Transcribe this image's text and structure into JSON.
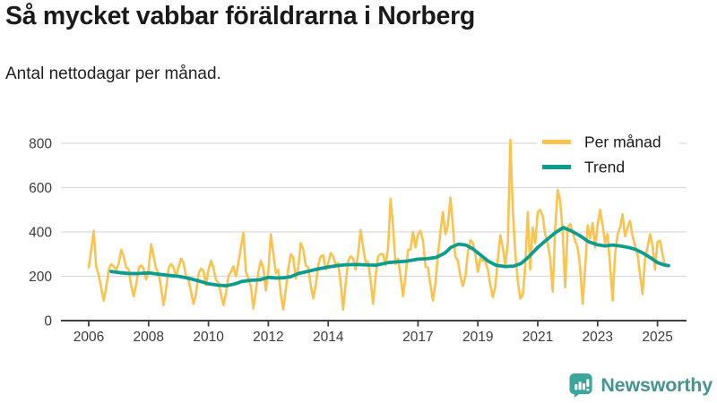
{
  "header": {
    "title": "Så mycket vabbar föräldrarna i Norberg",
    "subtitle": "Antal nettodagar per månad."
  },
  "legend": {
    "per_month_label": "Per månad",
    "trend_label": "Trend"
  },
  "footer": {
    "brand": "Newsworthy",
    "brand_color": "#44958f",
    "logo_color": "#3ba69b"
  },
  "chart_data": {
    "type": "line",
    "title": "Så mycket vabbar föräldrarna i Norberg",
    "xlabel": "",
    "ylabel": "",
    "grid": true,
    "legend_position": "top-right",
    "x_tick_years": [
      2006,
      2008,
      2010,
      2012,
      2014,
      2017,
      2019,
      2021,
      2023,
      2025
    ],
    "y_ticks": [
      0,
      200,
      400,
      600,
      800
    ],
    "ylim": [
      0,
      860
    ],
    "xlim_years": [
      2005.1,
      2026.0
    ],
    "colors": {
      "per_month": "#FBC34D",
      "trend": "#0C9D8F",
      "grid": "#d9d9d9",
      "axis": "#404040"
    },
    "series": [
      {
        "name": "Per månad",
        "start": "2006-01",
        "frequency": "monthly",
        "values": [
          240,
          320,
          405,
          245,
          205,
          150,
          90,
          150,
          230,
          255,
          245,
          230,
          255,
          320,
          290,
          240,
          230,
          160,
          110,
          160,
          235,
          250,
          235,
          185,
          230,
          345,
          290,
          235,
          215,
          150,
          70,
          140,
          235,
          255,
          240,
          200,
          240,
          280,
          260,
          200,
          185,
          130,
          75,
          120,
          210,
          235,
          225,
          160,
          230,
          270,
          235,
          185,
          170,
          120,
          70,
          125,
          200,
          220,
          245,
          200,
          260,
          330,
          395,
          220,
          190,
          155,
          55,
          135,
          220,
          270,
          240,
          135,
          225,
          390,
          300,
          215,
          230,
          120,
          50,
          140,
          235,
          300,
          285,
          190,
          240,
          350,
          320,
          250,
          240,
          160,
          100,
          160,
          250,
          290,
          295,
          230,
          260,
          305,
          290,
          250,
          260,
          170,
          50,
          170,
          270,
          290,
          280,
          230,
          300,
          410,
          330,
          265,
          265,
          180,
          75,
          200,
          290,
          300,
          300,
          250,
          330,
          550,
          420,
          255,
          280,
          200,
          110,
          200,
          320,
          320,
          400,
          330,
          390,
          405,
          360,
          242,
          240,
          160,
          90,
          170,
          300,
          400,
          490,
          390,
          430,
          555,
          420,
          288,
          270,
          200,
          155,
          200,
          310,
          363,
          350,
          300,
          220,
          280,
          270,
          268,
          230,
          160,
          105,
          155,
          280,
          385,
          330,
          250,
          350,
          815,
          500,
          300,
          180,
          100,
          115,
          250,
          490,
          230,
          420,
          350,
          490,
          500,
          470,
          390,
          350,
          280,
          130,
          420,
          590,
          540,
          400,
          150,
          420,
          435,
          400,
          360,
          330,
          240,
          75,
          240,
          430,
          370,
          440,
          330,
          430,
          500,
          430,
          350,
          390,
          250,
          90,
          300,
          390,
          420,
          480,
          380,
          420,
          450,
          380,
          340,
          300,
          210,
          120,
          280,
          330,
          390,
          340,
          230,
          355,
          360,
          300,
          250,
          245
        ]
      },
      {
        "name": "Trend",
        "frequency": "smoothed",
        "points": [
          [
            2006.75,
            222
          ],
          [
            2007.0,
            217
          ],
          [
            2007.3,
            213
          ],
          [
            2007.6,
            212
          ],
          [
            2008.0,
            215
          ],
          [
            2008.3,
            210
          ],
          [
            2008.6,
            205
          ],
          [
            2009.0,
            200
          ],
          [
            2009.3,
            192
          ],
          [
            2009.6,
            182
          ],
          [
            2010.0,
            166
          ],
          [
            2010.3,
            160
          ],
          [
            2010.6,
            157
          ],
          [
            2010.9,
            166
          ],
          [
            2011.1,
            176
          ],
          [
            2011.4,
            182
          ],
          [
            2011.7,
            184
          ],
          [
            2012.0,
            195
          ],
          [
            2012.25,
            192
          ],
          [
            2012.5,
            193
          ],
          [
            2012.75,
            198
          ],
          [
            2013.0,
            212
          ],
          [
            2013.3,
            222
          ],
          [
            2013.6,
            231
          ],
          [
            2014.0,
            242
          ],
          [
            2014.3,
            248
          ],
          [
            2014.6,
            252
          ],
          [
            2015.0,
            253
          ],
          [
            2015.3,
            251
          ],
          [
            2015.6,
            250
          ],
          [
            2016.0,
            262
          ],
          [
            2016.3,
            265
          ],
          [
            2016.6,
            268
          ],
          [
            2017.0,
            277
          ],
          [
            2017.3,
            279
          ],
          [
            2017.6,
            285
          ],
          [
            2017.9,
            305
          ],
          [
            2018.1,
            330
          ],
          [
            2018.35,
            345
          ],
          [
            2018.6,
            341
          ],
          [
            2018.85,
            322
          ],
          [
            2019.1,
            295
          ],
          [
            2019.35,
            268
          ],
          [
            2019.6,
            250
          ],
          [
            2019.9,
            244
          ],
          [
            2020.2,
            246
          ],
          [
            2020.45,
            258
          ],
          [
            2020.7,
            288
          ],
          [
            2021.0,
            330
          ],
          [
            2021.3,
            365
          ],
          [
            2021.6,
            398
          ],
          [
            2021.85,
            420
          ],
          [
            2022.1,
            406
          ],
          [
            2022.4,
            384
          ],
          [
            2022.7,
            356
          ],
          [
            2023.0,
            342
          ],
          [
            2023.25,
            337
          ],
          [
            2023.5,
            341
          ],
          [
            2023.75,
            337
          ],
          [
            2024.0,
            331
          ],
          [
            2024.25,
            322
          ],
          [
            2024.5,
            306
          ],
          [
            2024.75,
            285
          ],
          [
            2025.0,
            262
          ],
          [
            2025.2,
            252
          ],
          [
            2025.37,
            248
          ]
        ]
      }
    ]
  }
}
